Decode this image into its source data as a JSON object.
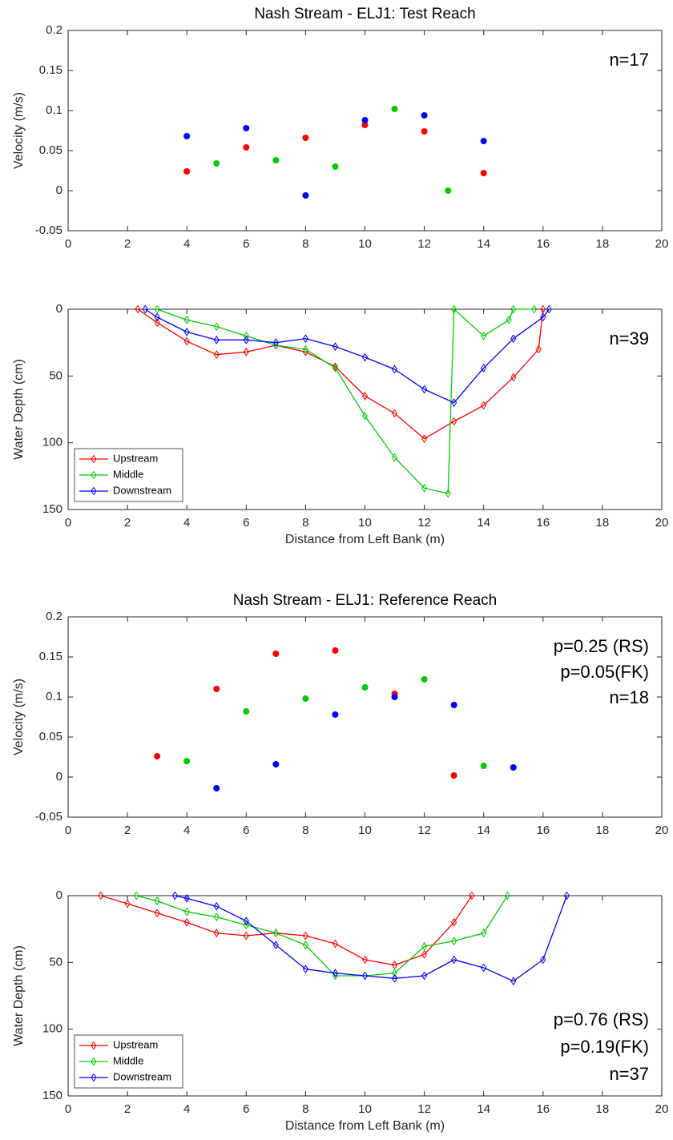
{
  "chart_data": [
    {
      "type": "scatter",
      "title": "Nash Stream - ELJ1: Test Reach",
      "y_label": "Velocity (m/s)",
      "xlim": [
        0,
        20
      ],
      "xticks": [
        0,
        2,
        4,
        6,
        8,
        10,
        12,
        14,
        16,
        18,
        20
      ],
      "ylim": [
        -0.05,
        0.2
      ],
      "yticks": [
        -0.05,
        0,
        0.05,
        0.1,
        0.15,
        0.2
      ],
      "annotations": [
        "n=17"
      ],
      "series": [
        {
          "color": "#ff0000",
          "x": [
            4,
            6,
            8,
            10,
            12,
            14
          ],
          "values": [
            0.024,
            0.054,
            0.066,
            0.082,
            0.074,
            0.022
          ]
        },
        {
          "color": "#00cc00",
          "x": [
            5,
            7,
            9,
            11,
            12.8
          ],
          "values": [
            0.034,
            0.038,
            0.03,
            0.102,
            0.0
          ]
        },
        {
          "color": "#0000ff",
          "x": [
            4,
            6,
            8,
            10,
            12,
            14
          ],
          "values": [
            0.068,
            0.078,
            -0.006,
            0.088,
            0.094,
            0.062
          ]
        }
      ]
    },
    {
      "type": "line",
      "y_label": "Water Depth (cm)",
      "x_label": "Distance from Left Bank (m)",
      "xlim": [
        0,
        20
      ],
      "xticks": [
        0,
        2,
        4,
        6,
        8,
        10,
        12,
        14,
        16,
        18,
        20
      ],
      "ylim": [
        0,
        150
      ],
      "yticks": [
        0,
        50,
        100,
        150
      ],
      "y_inverted": true,
      "annotations": [
        "n=39"
      ],
      "legend": "lower left",
      "series": [
        {
          "name": "Upstream",
          "color": "#ff0000",
          "x": [
            2.35,
            3,
            4,
            5,
            6,
            7,
            8,
            9,
            10,
            11,
            12,
            13,
            14,
            15,
            15.85,
            16
          ],
          "values": [
            0,
            10,
            24,
            34,
            32,
            27,
            32,
            43,
            65,
            78,
            97,
            84,
            72,
            51,
            30,
            0
          ]
        },
        {
          "name": "Middle",
          "color": "#00cc00",
          "x": [
            3,
            4,
            5,
            6,
            7,
            8,
            9,
            10,
            11,
            12,
            12.8,
            13,
            14,
            14.85,
            15,
            15.7
          ],
          "values": [
            0,
            8,
            13,
            20,
            27,
            30,
            44,
            80,
            111,
            134,
            138,
            0,
            20,
            8,
            0,
            0
          ]
        },
        {
          "name": "Downstream",
          "color": "#0000ff",
          "x": [
            2.6,
            3,
            4,
            5,
            6,
            7,
            8,
            9,
            10,
            11,
            12,
            13,
            14,
            15,
            16,
            16.2
          ],
          "values": [
            0,
            6,
            17,
            23,
            23,
            25,
            22,
            28,
            36,
            45,
            60,
            70,
            44,
            22,
            6,
            0
          ]
        }
      ]
    },
    {
      "type": "scatter",
      "title": "Nash Stream - ELJ1: Reference Reach",
      "y_label": "Velocity (m/s)",
      "xlim": [
        0,
        20
      ],
      "xticks": [
        0,
        2,
        4,
        6,
        8,
        10,
        12,
        14,
        16,
        18,
        20
      ],
      "ylim": [
        -0.05,
        0.2
      ],
      "yticks": [
        -0.05,
        0,
        0.05,
        0.1,
        0.15,
        0.2
      ],
      "annotations": [
        "p=0.25 (RS)",
        "p=0.05(FK)",
        "n=18"
      ],
      "series": [
        {
          "color": "#ff0000",
          "x": [
            3,
            5,
            7,
            9,
            11,
            13
          ],
          "values": [
            0.026,
            0.11,
            0.154,
            0.158,
            0.104,
            0.002
          ]
        },
        {
          "color": "#00cc00",
          "x": [
            4,
            6,
            8,
            10,
            12,
            14
          ],
          "values": [
            0.02,
            0.082,
            0.098,
            0.112,
            0.122,
            0.014
          ]
        },
        {
          "color": "#0000ff",
          "x": [
            5,
            7,
            9,
            11,
            13,
            15
          ],
          "values": [
            -0.014,
            0.016,
            0.078,
            0.1,
            0.09,
            0.012
          ]
        }
      ]
    },
    {
      "type": "line",
      "y_label": "Water Depth (cm)",
      "x_label": "Distance from Left Bank (m)",
      "xlim": [
        0,
        20
      ],
      "xticks": [
        0,
        2,
        4,
        6,
        8,
        10,
        12,
        14,
        16,
        18,
        20
      ],
      "ylim": [
        0,
        150
      ],
      "yticks": [
        0,
        50,
        100,
        150
      ],
      "y_inverted": true,
      "annotations": [
        "p=0.76 (RS)",
        "p=0.19(FK)",
        "n=37"
      ],
      "legend": "lower left",
      "series": [
        {
          "name": "Upstream",
          "color": "#ff0000",
          "x": [
            1.1,
            2,
            3,
            4,
            5,
            6,
            7,
            8,
            9,
            10,
            11,
            12,
            13,
            13.6
          ],
          "values": [
            0,
            6,
            13,
            20,
            28,
            30,
            28,
            30,
            36,
            48,
            52,
            44,
            20,
            0
          ]
        },
        {
          "name": "Middle",
          "color": "#00cc00",
          "x": [
            2.3,
            3,
            4,
            5,
            6,
            7,
            8,
            9,
            10,
            11,
            12,
            13,
            14,
            14.8
          ],
          "values": [
            0,
            4,
            12,
            16,
            22,
            28,
            37,
            60,
            60,
            58,
            38,
            34,
            28,
            0
          ]
        },
        {
          "name": "Downstream",
          "color": "#0000ff",
          "x": [
            3.6,
            4,
            5,
            6,
            7,
            8,
            9,
            10,
            11,
            12,
            13,
            14,
            15,
            16,
            16.8
          ],
          "values": [
            0,
            2,
            8,
            19,
            37,
            55,
            58,
            60,
            62,
            60,
            48,
            54,
            64,
            48,
            0
          ]
        }
      ]
    }
  ]
}
